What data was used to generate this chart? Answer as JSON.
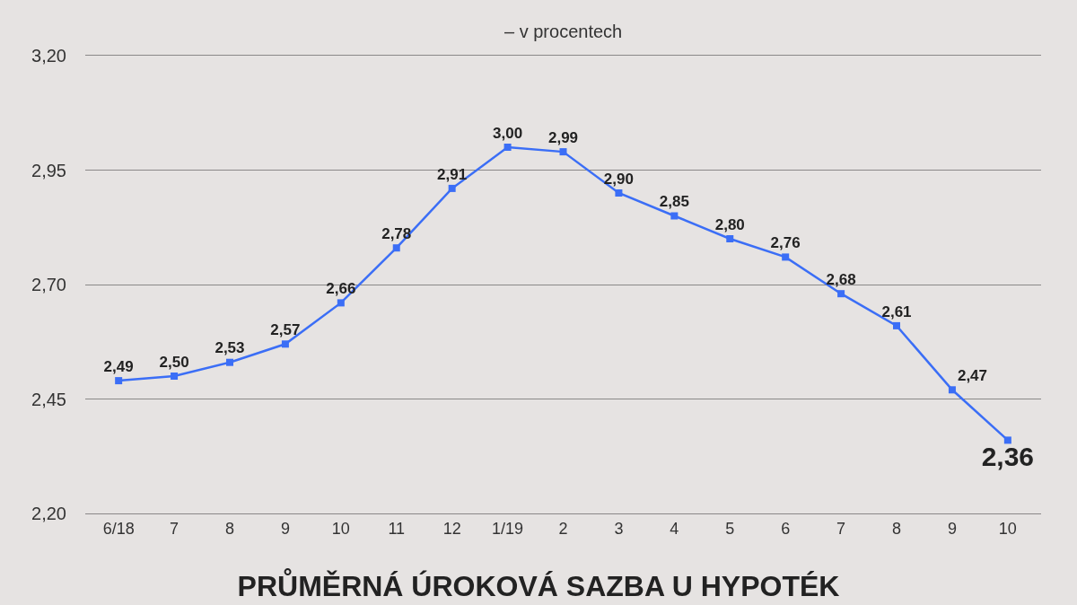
{
  "chart_data": {
    "type": "line",
    "title": "PRŮMĚRNÁ ÚROKOVÁ SAZBA U HYPOTÉK",
    "subtitle": "– v procentech",
    "categories": [
      "6/18",
      "7",
      "8",
      "9",
      "10",
      "11",
      "12",
      "1/19",
      "2",
      "3",
      "4",
      "5",
      "6",
      "7",
      "8",
      "9",
      "10"
    ],
    "series": [
      {
        "color": "#3b6ef6",
        "values": [
          2.49,
          2.5,
          2.53,
          2.57,
          2.66,
          2.78,
          2.91,
          3.0,
          2.99,
          2.9,
          2.85,
          2.8,
          2.76,
          2.68,
          2.61,
          2.47,
          2.36
        ],
        "value_labels": [
          "2,49",
          "2,50",
          "2,53",
          "2,57",
          "2,66",
          "2,78",
          "2,91",
          "3,00",
          "2,99",
          "2,90",
          "2,85",
          "2,80",
          "2,76",
          "2,68",
          "2,61",
          "2,47",
          "2,36"
        ]
      }
    ],
    "ylim": [
      2.2,
      3.2
    ],
    "yticks": [
      {
        "value": 2.2,
        "label": "2,20"
      },
      {
        "value": 2.45,
        "label": "2,45"
      },
      {
        "value": 2.7,
        "label": "2,70"
      },
      {
        "value": 2.95,
        "label": "2,95"
      },
      {
        "value": 3.2,
        "label": "3,20"
      }
    ],
    "grid": "y",
    "marker": "square",
    "line_style": "solid"
  }
}
